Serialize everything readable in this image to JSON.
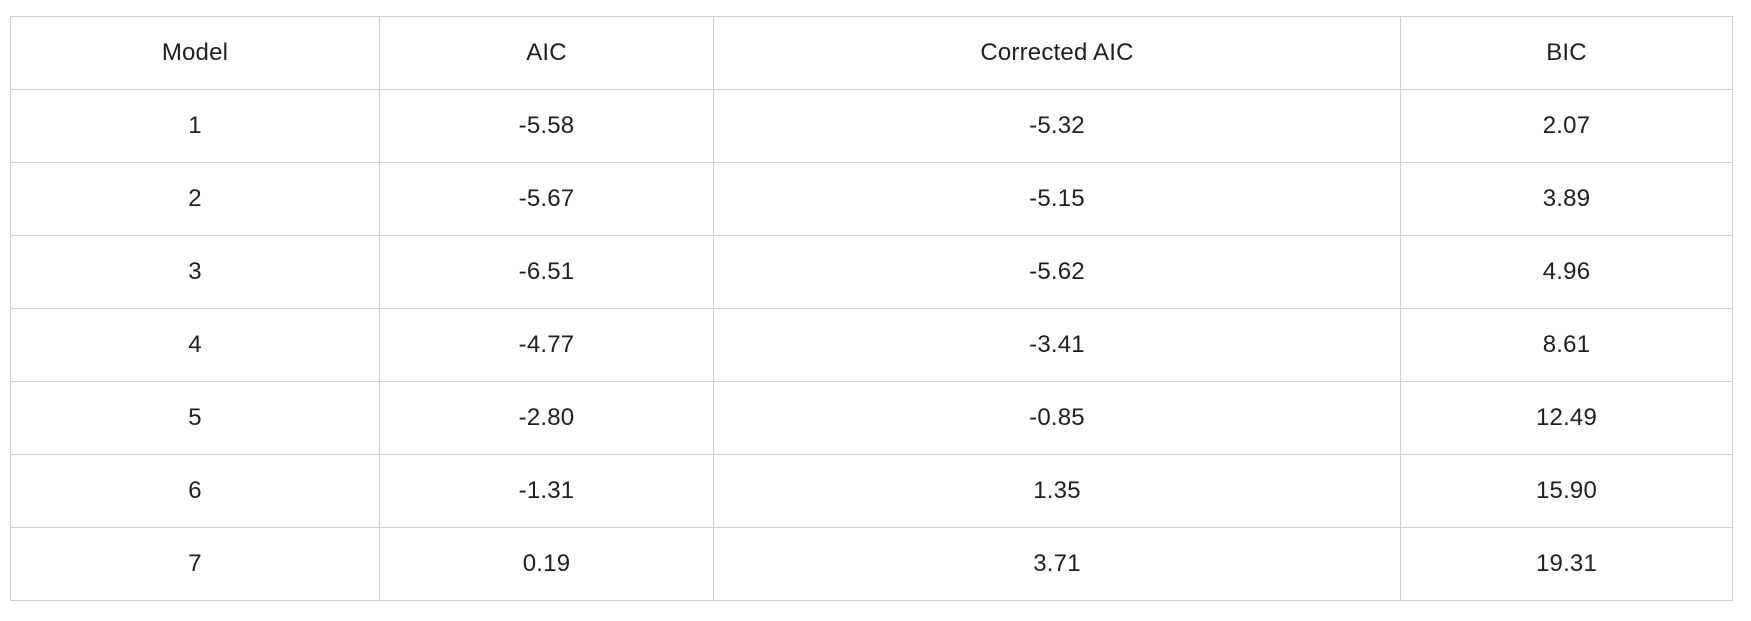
{
  "table": {
    "headers": [
      "Model",
      "AIC",
      "Corrected AIC",
      "BIC"
    ],
    "rows": [
      [
        "1",
        "-5.58",
        "-5.32",
        "2.07"
      ],
      [
        "2",
        "-5.67",
        "-5.15",
        "3.89"
      ],
      [
        "3",
        "-6.51",
        "-5.62",
        "4.96"
      ],
      [
        "4",
        "-4.77",
        "-3.41",
        "8.61"
      ],
      [
        "5",
        "-2.80",
        "-0.85",
        "12.49"
      ],
      [
        "6",
        "-1.31",
        "1.35",
        "15.90"
      ],
      [
        "7",
        "0.19",
        "3.71",
        "19.31"
      ]
    ]
  }
}
